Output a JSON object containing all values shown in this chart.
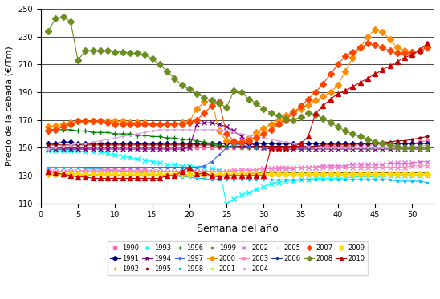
{
  "xlabel": "Semana del año",
  "ylabel": "Precio de la cebada (€/Tm)",
  "xlim": [
    0,
    53
  ],
  "ylim": [
    110,
    250
  ],
  "yticks": [
    110,
    130,
    150,
    170,
    190,
    210,
    230,
    250
  ],
  "xticks": [
    0,
    5,
    10,
    15,
    20,
    25,
    30,
    35,
    40,
    45,
    50
  ],
  "series": {
    "1990": {
      "color": "#FF69B4",
      "marker": "s",
      "linestyle": "-",
      "markersize": 3,
      "linewidth": 0.8,
      "data_y": [
        149,
        149,
        149,
        149,
        149,
        149,
        150,
        150,
        150,
        150,
        150,
        150,
        150,
        150,
        150,
        150,
        150,
        150,
        150,
        150,
        150,
        150,
        150,
        150,
        150,
        150,
        150,
        150,
        150,
        150,
        150,
        150,
        150,
        150,
        150,
        150,
        151,
        151,
        151,
        151,
        151,
        151,
        152,
        152,
        152,
        152,
        152,
        153,
        153,
        153,
        154,
        155
      ]
    },
    "1991": {
      "color": "#000080",
      "marker": "D",
      "linestyle": "-",
      "markersize": 3,
      "linewidth": 0.8,
      "data_y": [
        153,
        153,
        154,
        154,
        153,
        153,
        153,
        153,
        153,
        153,
        153,
        153,
        153,
        153,
        153,
        153,
        153,
        153,
        153,
        153,
        153,
        153,
        153,
        153,
        153,
        153,
        153,
        153,
        153,
        153,
        153,
        153,
        153,
        153,
        153,
        153,
        153,
        153,
        153,
        153,
        153,
        153,
        153,
        153,
        153,
        153,
        153,
        153,
        153,
        153,
        153,
        153
      ]
    },
    "1992": {
      "color": "#FFA500",
      "marker": "+",
      "linestyle": "-",
      "markersize": 4,
      "linewidth": 0.8,
      "data_y": [
        131,
        131,
        131,
        131,
        131,
        131,
        131,
        131,
        131,
        131,
        131,
        131,
        131,
        131,
        131,
        131,
        131,
        131,
        131,
        131,
        131,
        131,
        131,
        131,
        131,
        131,
        131,
        131,
        131,
        131,
        131,
        131,
        131,
        131,
        131,
        131,
        131,
        131,
        131,
        131,
        131,
        131,
        131,
        131,
        131,
        131,
        131,
        131,
        131,
        131,
        131,
        131
      ]
    },
    "1993": {
      "color": "#00FFFF",
      "marker": "x",
      "linestyle": "-",
      "markersize": 4,
      "linewidth": 0.8,
      "data_y": [
        148,
        148,
        148,
        148,
        148,
        147,
        147,
        147,
        146,
        145,
        144,
        143,
        142,
        141,
        140,
        139,
        138,
        138,
        137,
        137,
        136,
        136,
        135,
        134,
        110,
        113,
        116,
        118,
        120,
        122,
        124,
        125,
        126,
        126,
        127,
        127,
        128,
        128,
        128,
        128,
        128,
        129,
        129,
        129,
        129,
        129,
        130,
        130,
        130,
        130,
        130,
        130
      ]
    },
    "1994": {
      "color": "#800080",
      "marker": "x",
      "linestyle": "-",
      "markersize": 4,
      "linewidth": 0.8,
      "data_y": [
        149,
        149,
        149,
        149,
        149,
        149,
        149,
        149,
        149,
        149,
        149,
        149,
        149,
        149,
        149,
        149,
        149,
        149,
        149,
        150,
        167,
        168,
        168,
        167,
        165,
        162,
        158,
        154,
        151,
        150,
        149,
        149,
        149,
        149,
        149,
        149,
        149,
        149,
        149,
        149,
        149,
        149,
        149,
        149,
        149,
        149,
        149,
        149,
        149,
        149,
        149,
        149
      ]
    },
    "1995": {
      "color": "#8B0000",
      "marker": ".",
      "linestyle": "-",
      "markersize": 4,
      "linewidth": 0.8,
      "data_y": [
        152,
        152,
        152,
        152,
        152,
        152,
        152,
        152,
        152,
        152,
        152,
        152,
        152,
        152,
        152,
        152,
        152,
        152,
        152,
        152,
        152,
        152,
        152,
        151,
        151,
        151,
        151,
        151,
        151,
        151,
        151,
        151,
        151,
        151,
        151,
        151,
        151,
        152,
        152,
        152,
        152,
        152,
        153,
        153,
        153,
        154,
        154,
        155,
        155,
        156,
        157,
        158
      ]
    },
    "1996": {
      "color": "#008000",
      "marker": "+",
      "linestyle": "-",
      "markersize": 4,
      "linewidth": 0.8,
      "data_y": [
        163,
        163,
        163,
        163,
        162,
        162,
        161,
        161,
        161,
        160,
        160,
        160,
        159,
        159,
        158,
        158,
        157,
        157,
        156,
        156,
        155,
        154,
        153,
        152,
        151,
        151,
        150,
        150,
        150,
        150,
        150,
        150,
        150,
        150,
        150,
        150,
        150,
        150,
        150,
        150,
        150,
        150,
        150,
        150,
        150,
        150,
        150,
        150,
        150,
        150,
        150,
        150
      ]
    },
    "1997": {
      "color": "#4169E1",
      "marker": ".",
      "linestyle": "-",
      "markersize": 3,
      "linewidth": 0.8,
      "data_y": [
        136,
        136,
        136,
        136,
        136,
        136,
        136,
        136,
        136,
        136,
        136,
        136,
        136,
        136,
        136,
        136,
        136,
        136,
        136,
        136,
        136,
        137,
        140,
        145,
        150,
        152,
        152,
        151,
        150,
        150,
        150,
        150,
        150,
        150,
        150,
        150,
        150,
        150,
        150,
        150,
        150,
        150,
        150,
        150,
        150,
        150,
        150,
        150,
        150,
        150,
        150,
        150
      ]
    },
    "1998": {
      "color": "#00BFFF",
      "marker": ".",
      "linestyle": "-",
      "markersize": 3,
      "linewidth": 0.8,
      "data_y": [
        136,
        136,
        136,
        136,
        136,
        135,
        135,
        135,
        134,
        134,
        133,
        133,
        132,
        132,
        131,
        131,
        130,
        130,
        129,
        129,
        128,
        128,
        127,
        127,
        127,
        127,
        127,
        127,
        127,
        127,
        127,
        127,
        127,
        127,
        127,
        127,
        127,
        127,
        127,
        127,
        127,
        127,
        127,
        127,
        127,
        127,
        127,
        126,
        126,
        126,
        126,
        125
      ]
    },
    "1999": {
      "color": "#6B6B2F",
      "marker": ".",
      "linestyle": "-",
      "markersize": 4,
      "linewidth": 0.8,
      "data_y": [
        131,
        131,
        131,
        131,
        131,
        130,
        130,
        130,
        130,
        130,
        130,
        130,
        130,
        130,
        130,
        130,
        130,
        130,
        130,
        130,
        130,
        130,
        130,
        130,
        130,
        131,
        131,
        131,
        132,
        132,
        132,
        132,
        132,
        132,
        132,
        132,
        132,
        132,
        132,
        132,
        132,
        132,
        132,
        132,
        132,
        132,
        132,
        132,
        132,
        132,
        132,
        132
      ]
    },
    "2000": {
      "color": "#FF8C00",
      "marker": "D",
      "linestyle": "-",
      "markersize": 4,
      "linewidth": 0.8,
      "data_y": [
        165,
        166,
        167,
        168,
        169,
        169,
        169,
        169,
        169,
        169,
        169,
        168,
        168,
        168,
        167,
        167,
        167,
        167,
        168,
        169,
        178,
        183,
        184,
        162,
        155,
        154,
        154,
        157,
        161,
        164,
        167,
        170,
        173,
        176,
        178,
        181,
        184,
        187,
        190,
        195,
        205,
        215,
        222,
        230,
        235,
        233,
        228,
        222,
        220,
        219,
        220,
        222
      ]
    },
    "2001": {
      "color": "#ADFF2F",
      "marker": ".",
      "linestyle": "-",
      "markersize": 3,
      "linewidth": 0.8,
      "data_y": [
        130,
        130,
        130,
        130,
        130,
        130,
        130,
        130,
        130,
        130,
        130,
        130,
        130,
        130,
        130,
        130,
        130,
        130,
        130,
        130,
        130,
        130,
        130,
        130,
        130,
        130,
        130,
        130,
        130,
        130,
        130,
        130,
        130,
        130,
        130,
        130,
        130,
        130,
        130,
        130,
        130,
        130,
        130,
        130,
        130,
        130,
        130,
        130,
        130,
        130,
        130,
        130
      ]
    },
    "2002": {
      "color": "#DA70D6",
      "marker": "x",
      "linestyle": "-",
      "markersize": 4,
      "linewidth": 0.8,
      "data_y": [
        133,
        133,
        133,
        133,
        133,
        133,
        133,
        133,
        133,
        133,
        133,
        133,
        133,
        133,
        133,
        133,
        133,
        133,
        133,
        133,
        133,
        133,
        133,
        133,
        133,
        133,
        134,
        134,
        134,
        135,
        135,
        135,
        135,
        135,
        136,
        136,
        136,
        137,
        137,
        137,
        137,
        138,
        138,
        138,
        138,
        138,
        139,
        139,
        139,
        139,
        140,
        140
      ]
    },
    "2003": {
      "color": "#FF85C2",
      "marker": "x",
      "linestyle": "-",
      "markersize": 4,
      "linewidth": 0.8,
      "data_y": [
        134,
        133,
        133,
        133,
        133,
        134,
        134,
        134,
        134,
        134,
        134,
        134,
        134,
        134,
        133,
        133,
        133,
        133,
        133,
        133,
        133,
        133,
        133,
        133,
        133,
        134,
        134,
        134,
        134,
        135,
        135,
        136,
        136,
        136,
        136,
        136,
        136,
        136,
        136,
        136,
        136,
        136,
        136,
        136,
        136,
        136,
        136,
        136,
        136,
        137,
        137,
        137
      ]
    },
    "2004": {
      "color": "#DDA0DD",
      "marker": ".",
      "linestyle": "-",
      "markersize": 3,
      "linewidth": 0.8,
      "data_y": [
        149,
        150,
        151,
        152,
        153,
        153,
        154,
        155,
        156,
        157,
        158,
        159,
        160,
        161,
        162,
        163,
        163,
        163,
        163,
        163,
        163,
        163,
        163,
        163,
        162,
        161,
        160,
        159,
        158,
        157,
        156,
        155,
        154,
        153,
        152,
        151,
        150,
        150,
        150,
        150,
        150,
        150,
        150,
        150,
        150,
        150,
        150,
        150,
        150,
        151,
        151,
        152
      ]
    },
    "2005": {
      "color": "#F5DEB3",
      "marker": "+",
      "linestyle": "-",
      "markersize": 4,
      "linewidth": 0.8,
      "data_y": [
        130,
        130,
        130,
        130,
        130,
        130,
        130,
        130,
        130,
        130,
        130,
        130,
        130,
        130,
        130,
        130,
        130,
        130,
        130,
        130,
        130,
        130,
        130,
        130,
        130,
        130,
        130,
        130,
        130,
        130,
        130,
        130,
        130,
        130,
        130,
        130,
        130,
        130,
        130,
        130,
        130,
        130,
        130,
        130,
        130,
        130,
        130,
        130,
        130,
        130,
        130,
        130
      ]
    },
    "2006": {
      "color": "#1E3A8A",
      "marker": ".",
      "linestyle": "-",
      "markersize": 3,
      "linewidth": 0.8,
      "data_y": [
        130,
        130,
        130,
        130,
        130,
        130,
        130,
        130,
        130,
        130,
        130,
        130,
        130,
        130,
        130,
        130,
        130,
        130,
        130,
        130,
        130,
        130,
        130,
        130,
        130,
        130,
        130,
        130,
        130,
        130,
        130,
        130,
        130,
        130,
        130,
        130,
        130,
        130,
        130,
        130,
        130,
        130,
        130,
        130,
        130,
        130,
        130,
        130,
        130,
        130,
        130,
        130
      ]
    },
    "2007": {
      "color": "#FF4500",
      "marker": "D",
      "linestyle": "-",
      "markersize": 4,
      "linewidth": 0.8,
      "data_y": [
        162,
        163,
        165,
        167,
        169,
        169,
        169,
        169,
        168,
        167,
        167,
        167,
        167,
        167,
        167,
        167,
        167,
        167,
        167,
        168,
        170,
        175,
        180,
        183,
        160,
        155,
        154,
        155,
        157,
        160,
        163,
        167,
        170,
        175,
        180,
        185,
        190,
        196,
        203,
        210,
        216,
        219,
        222,
        225,
        224,
        222,
        220,
        218,
        218,
        219,
        220,
        222
      ]
    },
    "2008": {
      "color": "#6B8E23",
      "marker": "D",
      "linestyle": "-",
      "markersize": 4,
      "linewidth": 0.8,
      "data_y": [
        234,
        243,
        244,
        241,
        213,
        220,
        220,
        220,
        220,
        219,
        219,
        218,
        218,
        217,
        214,
        210,
        205,
        200,
        195,
        192,
        189,
        186,
        184,
        182,
        179,
        191,
        190,
        185,
        182,
        178,
        175,
        173,
        171,
        170,
        172,
        175,
        174,
        171,
        168,
        165,
        162,
        160,
        158,
        156,
        154,
        153,
        152,
        151,
        150,
        150,
        150,
        150
      ]
    },
    "2009": {
      "color": "#FFD700",
      "marker": "D",
      "linestyle": "-",
      "markersize": 4,
      "linewidth": 0.8,
      "data_y": [
        131,
        131,
        131,
        131,
        131,
        131,
        131,
        131,
        131,
        131,
        131,
        131,
        131,
        131,
        131,
        131,
        131,
        131,
        131,
        131,
        131,
        131,
        131,
        131,
        131,
        131,
        131,
        131,
        131,
        131,
        131,
        131,
        131,
        131,
        131,
        131,
        131,
        131,
        131,
        131,
        131,
        131,
        131,
        131,
        131,
        131,
        131,
        131,
        131,
        131,
        131,
        131
      ]
    },
    "2010": {
      "color": "#CC0000",
      "marker": "^",
      "linestyle": "-",
      "markersize": 5,
      "linewidth": 0.8,
      "data_y": [
        133,
        132,
        131,
        130,
        129,
        129,
        128,
        128,
        128,
        128,
        128,
        128,
        128,
        128,
        128,
        128,
        130,
        130,
        133,
        136,
        131,
        132,
        130,
        129,
        130,
        130,
        130,
        130,
        130,
        130,
        150,
        150,
        150,
        151,
        153,
        158,
        175,
        180,
        185,
        189,
        191,
        194,
        197,
        200,
        203,
        206,
        209,
        212,
        215,
        217,
        220,
        225
      ]
    }
  },
  "legend_order": [
    "1990",
    "1991",
    "1992",
    "1993",
    "1994",
    "1995",
    "1996",
    "1997",
    "1998",
    "1999",
    "2000",
    "2001",
    "2002",
    "2003",
    "2004",
    "2005",
    "2006",
    "2007",
    "2008",
    "2009",
    "2010"
  ]
}
